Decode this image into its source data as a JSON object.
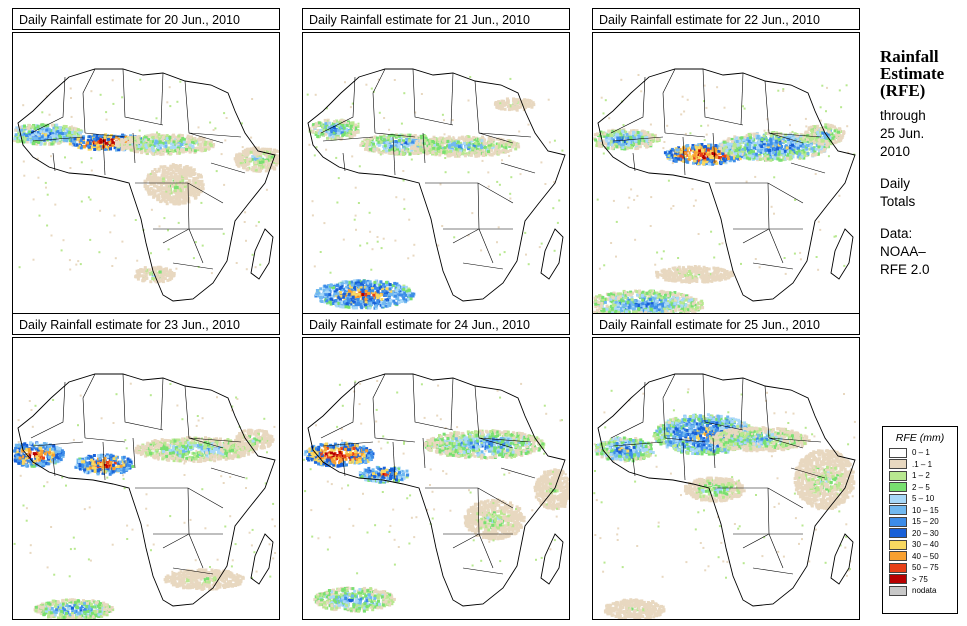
{
  "panels": [
    {
      "title": "Daily Rainfall estimate for  20 Jun., 2010"
    },
    {
      "title": "Daily Rainfall estimate for  21 Jun., 2010"
    },
    {
      "title": "Daily Rainfall estimate for  22 Jun., 2010"
    },
    {
      "title": "Daily Rainfall estimate for  23 Jun., 2010"
    },
    {
      "title": "Daily Rainfall estimate for  24 Jun., 2010"
    },
    {
      "title": "Daily Rainfall estimate for  25 Jun., 2010"
    }
  ],
  "sidebar": {
    "heading_line1": "Rainfall",
    "heading_line2": "Estimate",
    "heading_line3": "(RFE)",
    "through_label": "through",
    "through_date": "25 Jun.",
    "through_year": "2010",
    "totals_line1": "Daily",
    "totals_line2": "Totals",
    "data_label": "Data:",
    "data_source1": "NOAA–",
    "data_source2": "RFE 2.0"
  },
  "legend": {
    "title": "RFE (mm)",
    "entries": [
      {
        "label": "0 – 1",
        "color": "#ffffff"
      },
      {
        "label": ".1 – 1",
        "color": "#e8d8c0"
      },
      {
        "label": "1 – 2",
        "color": "#b8e890"
      },
      {
        "label": "2 – 5",
        "color": "#78e070"
      },
      {
        "label": "5 – 10",
        "color": "#a8d8f8"
      },
      {
        "label": "10 – 15",
        "color": "#70b8f0"
      },
      {
        "label": "15 – 20",
        "color": "#3c8ce8"
      },
      {
        "label": "20 – 30",
        "color": "#1860d8"
      },
      {
        "label": "30 – 40",
        "color": "#f8d860"
      },
      {
        "label": "40 – 50",
        "color": "#f8a030"
      },
      {
        "label": "50 – 75",
        "color": "#e84018"
      },
      {
        "label": "> 75",
        "color": "#b80000"
      },
      {
        "label": "nodata",
        "color": "#c8c8c8"
      }
    ]
  }
}
